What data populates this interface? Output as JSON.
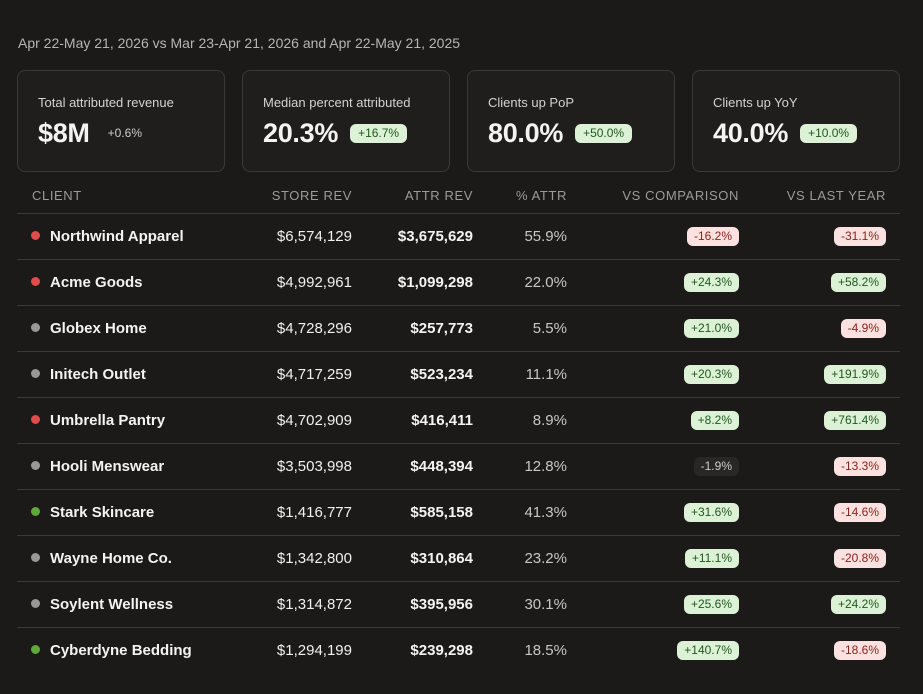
{
  "header": {
    "date_range": "Apr 22-May 21, 2026 vs Mar 23-Apr 21, 2026 and Apr 22-May 21, 2025"
  },
  "cards": [
    {
      "label": "Total attributed revenue",
      "value": "$8M",
      "delta": "+0.6%",
      "delta_style": "plain"
    },
    {
      "label": "Median percent attributed",
      "value": "20.3%",
      "delta": "+16.7%",
      "delta_style": "pill"
    },
    {
      "label": "Clients up PoP",
      "value": "80.0%",
      "delta": "+50.0%",
      "delta_style": "pill"
    },
    {
      "label": "Clients up YoY",
      "value": "40.0%",
      "delta": "+10.0%",
      "delta_style": "pill"
    }
  ],
  "table": {
    "columns": {
      "client": "CLIENT",
      "store_rev": "STORE REV",
      "attr_rev": "ATTR REV",
      "pct_attr": "% ATTR",
      "vs_comparison": "VS COMPARISON",
      "vs_last_year": "VS LAST YEAR"
    },
    "rows": [
      {
        "client": "Northwind Apparel",
        "status_color": "#e14b4b",
        "store_rev": "$6,574,129",
        "attr_rev": "$3,675,629",
        "pct_attr": "55.9%",
        "vs_comparison": "-16.2%",
        "vs_comparison_tone": "neg",
        "vs_last_year": "-31.1%",
        "vs_last_year_tone": "neg"
      },
      {
        "client": "Acme Goods",
        "status_color": "#e14b4b",
        "store_rev": "$4,992,961",
        "attr_rev": "$1,099,298",
        "pct_attr": "22.0%",
        "vs_comparison": "+24.3%",
        "vs_comparison_tone": "pos",
        "vs_last_year": "+58.2%",
        "vs_last_year_tone": "pos"
      },
      {
        "client": "Globex Home",
        "status_color": "#9a9894",
        "store_rev": "$4,728,296",
        "attr_rev": "$257,773",
        "pct_attr": "5.5%",
        "vs_comparison": "+21.0%",
        "vs_comparison_tone": "pos",
        "vs_last_year": "-4.9%",
        "vs_last_year_tone": "neg"
      },
      {
        "client": "Initech Outlet",
        "status_color": "#9a9894",
        "store_rev": "$4,717,259",
        "attr_rev": "$523,234",
        "pct_attr": "11.1%",
        "vs_comparison": "+20.3%",
        "vs_comparison_tone": "pos",
        "vs_last_year": "+191.9%",
        "vs_last_year_tone": "pos"
      },
      {
        "client": "Umbrella Pantry",
        "status_color": "#e14b4b",
        "store_rev": "$4,702,909",
        "attr_rev": "$416,411",
        "pct_attr": "8.9%",
        "vs_comparison": "+8.2%",
        "vs_comparison_tone": "pos",
        "vs_last_year": "+761.4%",
        "vs_last_year_tone": "pos"
      },
      {
        "client": "Hooli Menswear",
        "status_color": "#9a9894",
        "store_rev": "$3,503,998",
        "attr_rev": "$448,394",
        "pct_attr": "12.8%",
        "vs_comparison": "-1.9%",
        "vs_comparison_tone": "neutral",
        "vs_last_year": "-13.3%",
        "vs_last_year_tone": "neg"
      },
      {
        "client": "Stark Skincare",
        "status_color": "#5fa83a",
        "store_rev": "$1,416,777",
        "attr_rev": "$585,158",
        "pct_attr": "41.3%",
        "vs_comparison": "+31.6%",
        "vs_comparison_tone": "pos",
        "vs_last_year": "-14.6%",
        "vs_last_year_tone": "neg"
      },
      {
        "client": "Wayne Home Co.",
        "status_color": "#9a9894",
        "store_rev": "$1,342,800",
        "attr_rev": "$310,864",
        "pct_attr": "23.2%",
        "vs_comparison": "+11.1%",
        "vs_comparison_tone": "pos",
        "vs_last_year": "-20.8%",
        "vs_last_year_tone": "neg"
      },
      {
        "client": "Soylent Wellness",
        "status_color": "#9a9894",
        "store_rev": "$1,314,872",
        "attr_rev": "$395,956",
        "pct_attr": "30.1%",
        "vs_comparison": "+25.6%",
        "vs_comparison_tone": "pos",
        "vs_last_year": "+24.2%",
        "vs_last_year_tone": "pos"
      },
      {
        "client": "Cyberdyne Bedding",
        "status_color": "#5fa83a",
        "store_rev": "$1,294,199",
        "attr_rev": "$239,298",
        "pct_attr": "18.5%",
        "vs_comparison": "+140.7%",
        "vs_comparison_tone": "pos",
        "vs_last_year": "-18.6%",
        "vs_last_year_tone": "neg"
      }
    ]
  }
}
